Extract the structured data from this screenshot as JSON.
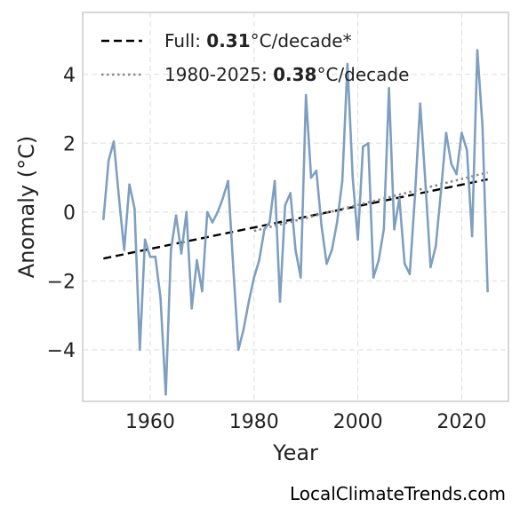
{
  "chart_data": {
    "type": "line",
    "xlabel": "Year",
    "ylabel": "Anomaly (°C)",
    "xlim": [
      1947,
      2029
    ],
    "ylim": [
      -5.5,
      5.8
    ],
    "xticks": [
      1960,
      1980,
      2000,
      2020
    ],
    "yticks": [
      -4,
      -2,
      0,
      2,
      4
    ],
    "ytick_labels": [
      "−4",
      "−2",
      "0",
      "2",
      "4"
    ],
    "grid": true,
    "legend_position": "top-left",
    "colors": {
      "series": "#7f9fc0",
      "full_trend": "#000000",
      "recent_trend": "#888888",
      "grid": "#dddddd",
      "frame": "#cccccc"
    },
    "series": [
      {
        "x": [
          1951,
          1952,
          1953,
          1954,
          1955,
          1956,
          1957,
          1958,
          1959,
          1960,
          1961,
          1962,
          1963,
          1964,
          1965,
          1966,
          1967,
          1968,
          1969,
          1970,
          1971,
          1972,
          1973,
          1974,
          1975,
          1976,
          1977,
          1978,
          1979,
          1980,
          1981,
          1982,
          1983,
          1984,
          1985,
          1986,
          1987,
          1988,
          1989,
          1990,
          1991,
          1992,
          1993,
          1994,
          1995,
          1996,
          1997,
          1998,
          1999,
          2000,
          2001,
          2002,
          2003,
          2004,
          2005,
          2006,
          2007,
          2008,
          2009,
          2010,
          2011,
          2012,
          2013,
          2014,
          2015,
          2016,
          2017,
          2018,
          2019,
          2020,
          2021,
          2022,
          2023,
          2024,
          2025
        ],
        "values": [
          -0.2,
          1.5,
          2.05,
          0.4,
          -1.1,
          0.8,
          0.1,
          -4.0,
          -0.8,
          -1.3,
          -1.3,
          -2.5,
          -5.3,
          -1.1,
          -0.1,
          -1.2,
          0.0,
          -2.8,
          -1.4,
          -2.3,
          0.0,
          -0.3,
          0.0,
          0.4,
          0.9,
          -1.6,
          -4.0,
          -3.4,
          -2.6,
          -1.9,
          -1.4,
          -0.5,
          -0.3,
          0.9,
          -2.6,
          0.2,
          0.55,
          -1.1,
          -1.9,
          3.4,
          1.0,
          1.2,
          -0.4,
          -1.5,
          -1.1,
          -0.3,
          0.9,
          4.3,
          1.0,
          -0.8,
          1.9,
          2.0,
          -1.9,
          -1.4,
          -0.5,
          3.6,
          -0.5,
          0.4,
          -1.5,
          -1.8,
          0.5,
          3.15,
          0.9,
          -1.6,
          -1.0,
          0.6,
          2.3,
          1.4,
          1.1,
          2.3,
          1.8,
          -0.7,
          4.7,
          2.5,
          -2.3
        ]
      }
    ],
    "trend_lines": [
      {
        "x": [
          1951,
          2025
        ],
        "y": [
          -1.35,
          0.95
        ],
        "style": "dashed"
      },
      {
        "x": [
          1980,
          2025
        ],
        "y": [
          -0.55,
          1.15
        ],
        "style": "dotted"
      }
    ],
    "legend": [
      {
        "prefix": "Full: ",
        "bold": "0.31",
        "suffix": "°C/decade*"
      },
      {
        "prefix": "1980-2025: ",
        "bold": "0.38",
        "suffix": "°C/decade"
      }
    ]
  },
  "source_text": "LocalClimateTrends.com"
}
